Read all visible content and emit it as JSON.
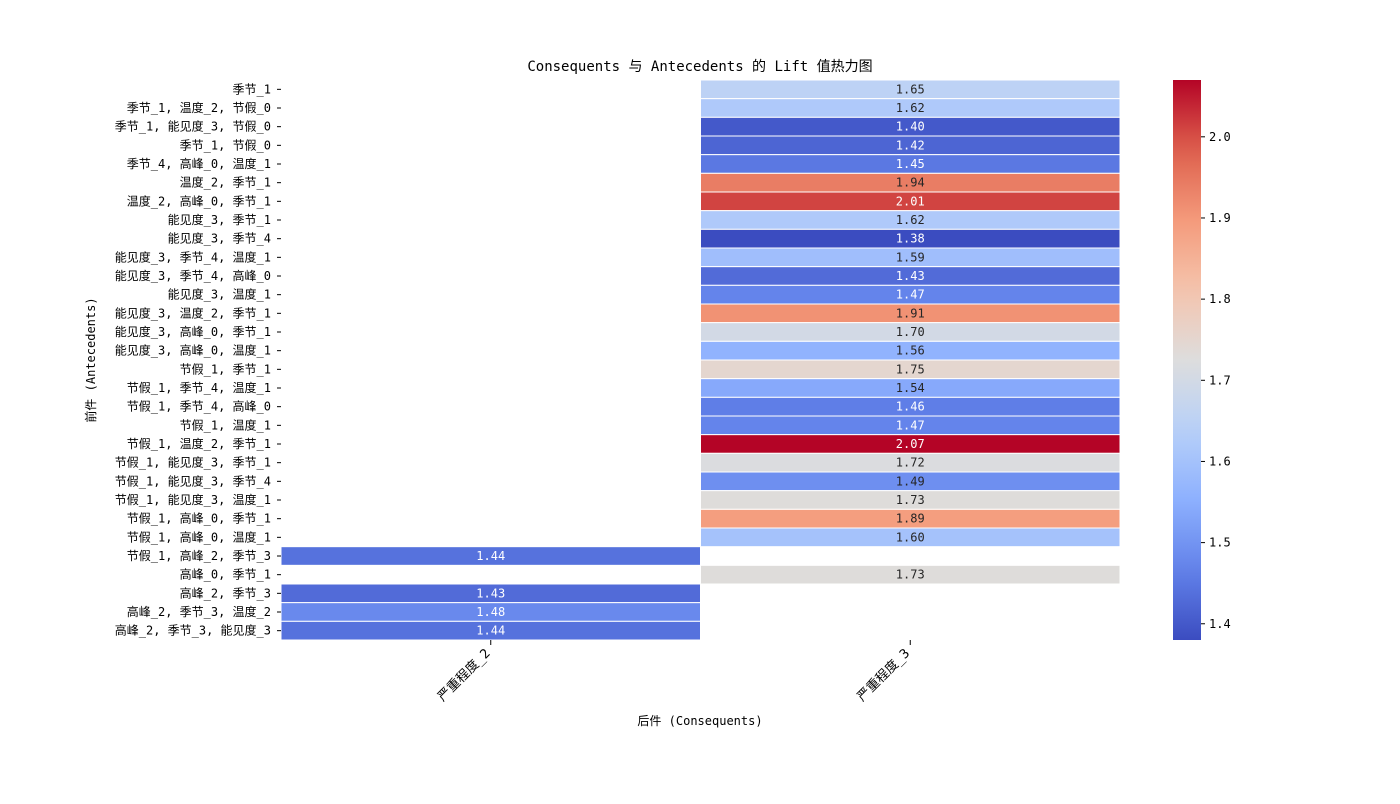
{
  "chart_data": {
    "type": "heatmap",
    "title": "Consequents 与 Antecedents 的 Lift 值热力图",
    "xlabel": "后件 (Consequents)",
    "ylabel": "前件 (Antecedents)",
    "columns": [
      "严重程度_2",
      "严重程度_3"
    ],
    "rows": [
      "季节_1",
      "季节_1, 温度_2, 节假_0",
      "季节_1, 能见度_3, 节假_0",
      "季节_1, 节假_0",
      "季节_4, 高峰_0, 温度_1",
      "温度_2, 季节_1",
      "温度_2, 高峰_0, 季节_1",
      "能见度_3, 季节_1",
      "能见度_3, 季节_4",
      "能见度_3, 季节_4, 温度_1",
      "能见度_3, 季节_4, 高峰_0",
      "能见度_3, 温度_1",
      "能见度_3, 温度_2, 季节_1",
      "能见度_3, 高峰_0, 季节_1",
      "能见度_3, 高峰_0, 温度_1",
      "节假_1, 季节_1",
      "节假_1, 季节_4, 温度_1",
      "节假_1, 季节_4, 高峰_0",
      "节假_1, 温度_1",
      "节假_1, 温度_2, 季节_1",
      "节假_1, 能见度_3, 季节_1",
      "节假_1, 能见度_3, 季节_4",
      "节假_1, 能见度_3, 温度_1",
      "节假_1, 高峰_0, 季节_1",
      "节假_1, 高峰_0, 温度_1",
      "节假_1, 高峰_2, 季节_3",
      "高峰_0, 季节_1",
      "高峰_2, 季节_3",
      "高峰_2, 季节_3, 温度_2",
      "高峰_2, 季节_3, 能见度_3"
    ],
    "values": [
      [
        null,
        1.65
      ],
      [
        null,
        1.62
      ],
      [
        null,
        1.4
      ],
      [
        null,
        1.42
      ],
      [
        null,
        1.45
      ],
      [
        null,
        1.94
      ],
      [
        null,
        2.01
      ],
      [
        null,
        1.62
      ],
      [
        null,
        1.38
      ],
      [
        null,
        1.59
      ],
      [
        null,
        1.43
      ],
      [
        null,
        1.47
      ],
      [
        null,
        1.91
      ],
      [
        null,
        1.7
      ],
      [
        null,
        1.56
      ],
      [
        null,
        1.75
      ],
      [
        null,
        1.54
      ],
      [
        null,
        1.46
      ],
      [
        null,
        1.47
      ],
      [
        null,
        2.07
      ],
      [
        null,
        1.72
      ],
      [
        null,
        1.49
      ],
      [
        null,
        1.73
      ],
      [
        null,
        1.89
      ],
      [
        null,
        1.6
      ],
      [
        1.44,
        null
      ],
      [
        null,
        1.73
      ],
      [
        1.43,
        null
      ],
      [
        1.48,
        null
      ],
      [
        1.44,
        null
      ]
    ],
    "colormap": "coolwarm",
    "vmin": 1.38,
    "vmax": 2.07,
    "colorbar_ticks": [
      1.4,
      1.5,
      1.6,
      1.7,
      1.8,
      1.9,
      2.0
    ],
    "colorbar_tick_labels": [
      "1.4",
      "1.5",
      "1.6",
      "1.7",
      "1.8",
      "1.9",
      "2.0"
    ],
    "colorbar": "right"
  }
}
